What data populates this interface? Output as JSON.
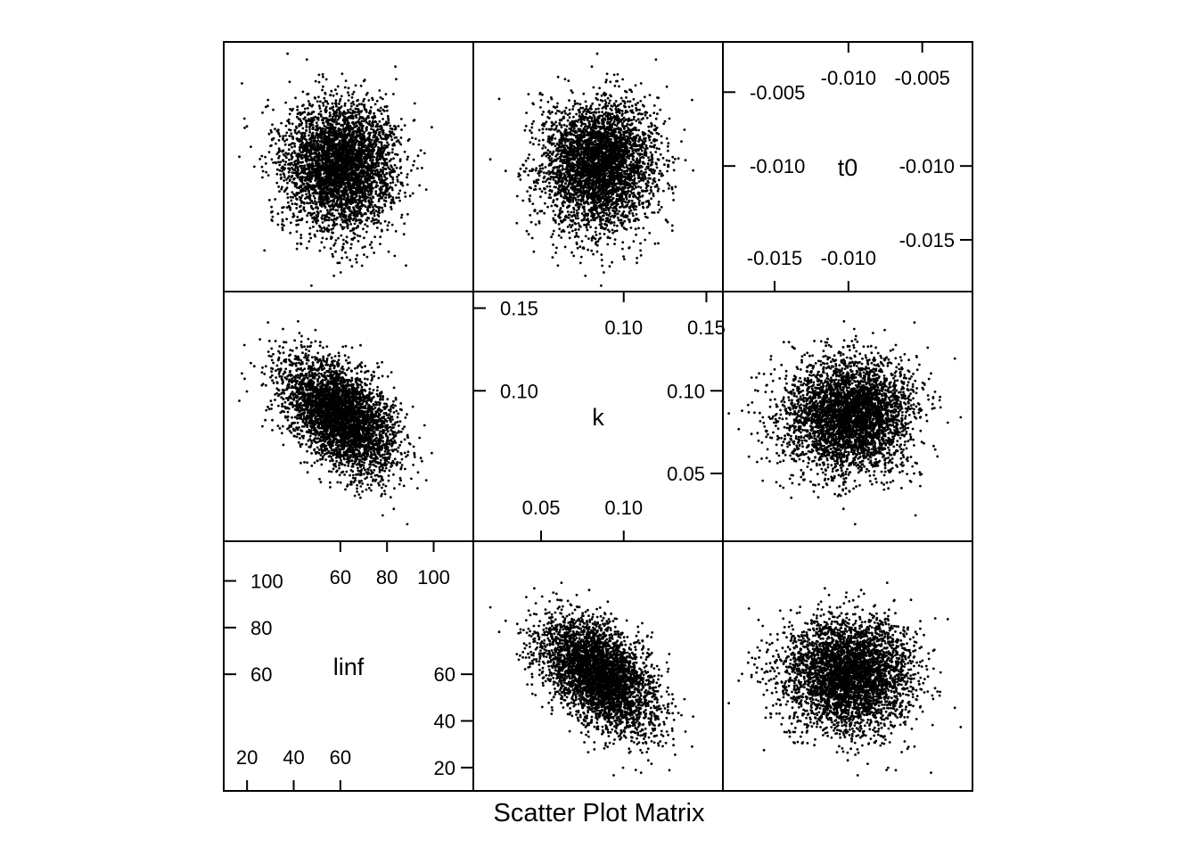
{
  "chart_data": {
    "type": "scatter",
    "subtype": "scatter-plot-matrix",
    "title": "",
    "xlabel": "Scatter Plot Matrix",
    "ylabel": "",
    "variables": [
      {
        "name": "linf",
        "range": [
          10,
          117
        ],
        "diag_ticks_bottom": [
          20,
          40,
          60
        ],
        "diag_ticks_left": [
          60,
          80,
          100
        ],
        "diag_ticks_top": [
          60,
          80,
          100
        ],
        "diag_ticks_right": [
          20,
          40,
          60
        ],
        "mean": 60,
        "sd": 12
      },
      {
        "name": "k",
        "range": [
          0.009,
          0.16
        ],
        "diag_ticks_bottom": [
          "0.05",
          "0.10"
        ],
        "diag_ticks_left": [
          "0.10",
          "0.15"
        ],
        "diag_ticks_top": [
          "0.10",
          "0.15"
        ],
        "diag_ticks_right": [
          "0.05",
          "0.10"
        ],
        "mean": 0.085,
        "sd": 0.017
      },
      {
        "name": "t0",
        "range": [
          -0.0185,
          -0.0016
        ],
        "diag_ticks_bottom": [
          "-0.015",
          "-0.010"
        ],
        "diag_ticks_left": [
          "-0.010",
          "-0.005"
        ],
        "diag_ticks_top": [
          "-0.010",
          "-0.005"
        ],
        "diag_ticks_right": [
          "-0.015",
          "-0.010"
        ],
        "mean": -0.01,
        "sd": 0.0021
      }
    ],
    "correlations": {
      "linf_k": -0.5,
      "linf_t0": 0.0,
      "k_t0": 0.0
    },
    "n_points": 4000,
    "point_color": "#000000",
    "grid": false,
    "legend": "none"
  }
}
